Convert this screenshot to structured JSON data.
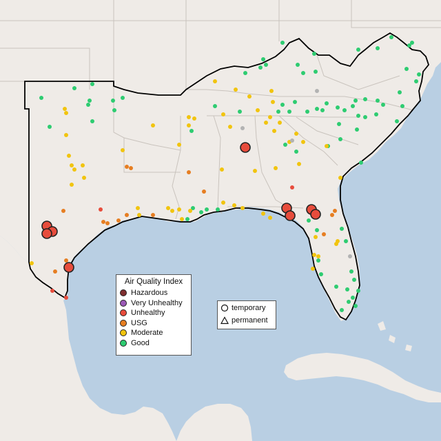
{
  "map": {
    "region": "Southeastern United States",
    "colors": {
      "water": "#b9cfe3",
      "land": "#efebe7",
      "state_border": "#c9c3bd",
      "region_outline": "#000000"
    }
  },
  "legend_aqi": {
    "title": "Air Quality Index",
    "categories": [
      {
        "label": "Hazardous",
        "color": "#7e2f2f"
      },
      {
        "label": "Very Unhealthy",
        "color": "#9b59b6"
      },
      {
        "label": "Unhealthy",
        "color": "#e74c3c"
      },
      {
        "label": "USG",
        "color": "#e67e22"
      },
      {
        "label": "Moderate",
        "color": "#f1c40f"
      },
      {
        "label": "Good",
        "color": "#2ecc71"
      }
    ]
  },
  "legend_monitor_type": {
    "items": [
      {
        "label": "temporary",
        "icon": "circle-icon"
      },
      {
        "label": "permanent",
        "icon": "triangle-icon"
      }
    ]
  },
  "monitors": {
    "good_count_hint": "many",
    "notes": "markers colored by AQI category"
  }
}
